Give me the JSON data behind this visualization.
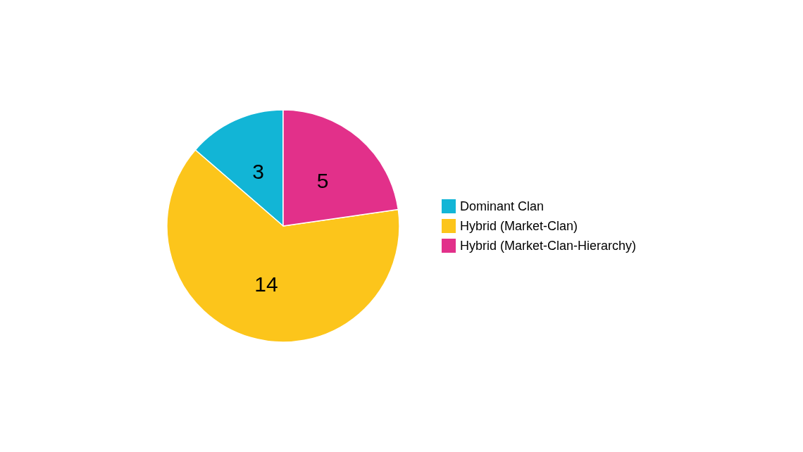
{
  "chart_data": {
    "type": "pie",
    "categories": [
      "Dominant Clan",
      "Hybrid (Market-Clan)",
      "Hybrid (Market-Clan-Hierarchy)"
    ],
    "values": [
      3,
      14,
      5
    ],
    "colors": [
      "#12b5d6",
      "#fcc51b",
      "#e2308a"
    ],
    "data_labels": true,
    "legend": "right"
  }
}
